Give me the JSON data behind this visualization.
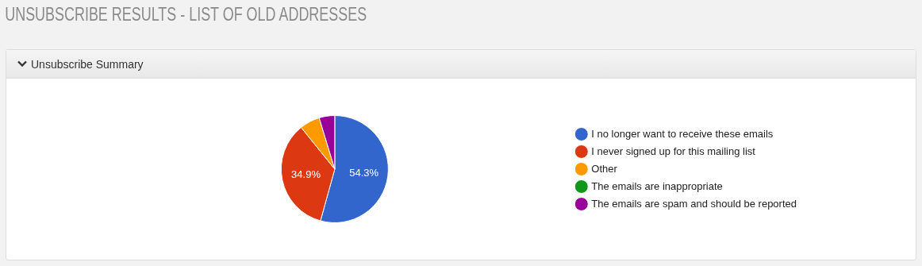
{
  "chart_data": {
    "type": "pie",
    "title": "UNSUBSCRIBE RESULTS - LIST OF OLD ADDRESSES",
    "subtitle": "Unsubscribe Summary",
    "categories": [
      "I no longer want to receive these emails",
      "I never signed up for this mailing list",
      "Other",
      "The emails are inappropriate",
      "The emails are spam and should be reported"
    ],
    "values": [
      54.3,
      34.9,
      6.1,
      0,
      4.7
    ],
    "colors": [
      "#3366cc",
      "#dc3912",
      "#ff9900",
      "#109618",
      "#990099"
    ],
    "value_labels": [
      "54.3%",
      "34.9%",
      null,
      null,
      null
    ],
    "legend": "right"
  }
}
